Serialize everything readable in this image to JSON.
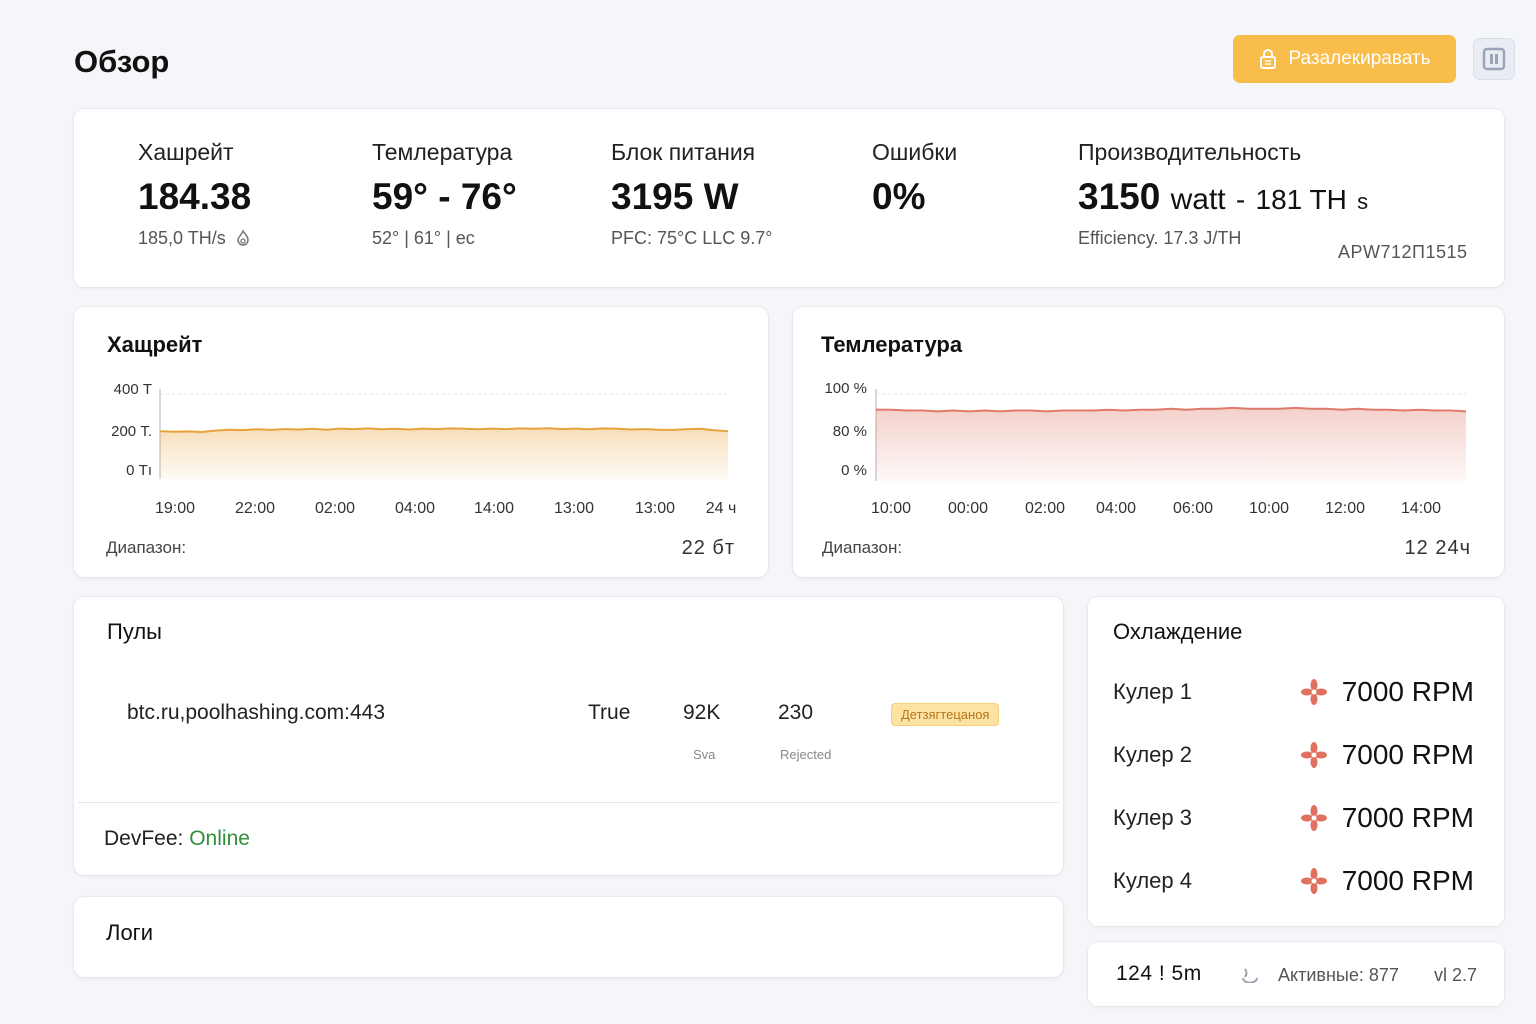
{
  "page": {
    "title": "Обзор"
  },
  "toolbar": {
    "unlock_label": "Разалекиравать",
    "lock_icon": "lock-icon",
    "pause_icon": "pause-icon"
  },
  "stats": {
    "hashrate": {
      "label": "Хашрейт",
      "value": "184.38",
      "sub": "185,0 TH/s"
    },
    "temperature": {
      "label": "Темлература",
      "value": "59° - 76°",
      "sub": "52° | 61° | ec"
    },
    "psu": {
      "label": "Блок питания",
      "value": "3195 W",
      "sub": "PFC: 75°C  LLC 9.7°"
    },
    "errors": {
      "label": "Ошибки",
      "value": "0%"
    },
    "performance": {
      "label": "Производительность",
      "value_main": "3150",
      "value_unit": "watt",
      "value_sep": "-",
      "value_th": "181 TH",
      "value_s": "s",
      "sub": "Efficiency. 17.3 J/TH",
      "model": "APW712П1515"
    }
  },
  "hashrate_chart": {
    "title": "Хащрейт",
    "range_label": "Диапазон:",
    "range_value": "22 бт",
    "color": "#e8a23a"
  },
  "temperature_chart": {
    "title": "Темлература",
    "range_label": "Диапазон:",
    "range_value": "12 24ч",
    "color": "#e07a6a"
  },
  "chart_data": [
    {
      "type": "area",
      "title": "Хащрейт",
      "y_ticks": [
        "400 Т",
        "200 Т.",
        "0 Тı"
      ],
      "ylim": [
        0,
        400
      ],
      "x_ticks": [
        "19:00",
        "22:00",
        "02:00",
        "04:00",
        "14:00",
        "13:00",
        "13:00",
        "24 ч"
      ],
      "series": [
        {
          "values": [
            225,
            222,
            224,
            221,
            228,
            232,
            230,
            234,
            231,
            235,
            233,
            236,
            232,
            237,
            235,
            238,
            234,
            236,
            233,
            237,
            235,
            238,
            236,
            234,
            237,
            235,
            238,
            236,
            239,
            235,
            237,
            234,
            238,
            236,
            233,
            235,
            232,
            231,
            234,
            236,
            229,
            225
          ]
        }
      ]
    },
    {
      "type": "area",
      "title": "Темлература",
      "y_ticks": [
        "100 %",
        "80 %",
        "0 %"
      ],
      "x_ticks": [
        "10:00",
        "00:00",
        "02:00",
        "04:00",
        "06:00",
        "10:00",
        "12:00",
        "14:00"
      ],
      "series": [
        {
          "values": [
            82,
            82,
            81,
            81,
            80,
            81,
            80,
            81,
            80,
            81,
            81,
            80,
            81,
            81,
            81,
            82,
            81,
            82,
            82,
            83,
            82,
            83,
            83,
            84,
            83,
            83,
            83,
            84,
            83,
            83,
            82,
            83,
            82,
            82,
            81,
            82,
            81,
            81,
            80
          ]
        }
      ]
    }
  ],
  "pools": {
    "title": "Пулы",
    "rows": [
      {
        "url": "btc.ru,poolhashing.com:443",
        "active": "True",
        "accepted": "92K",
        "accepted_label": "Sva",
        "rejected": "230",
        "rejected_label": "Rejected",
        "status": "Детзягтецаноя"
      }
    ],
    "devfee_label": "DevFee:",
    "devfee_value": "Online",
    "devfee_color": "#2f8f3a"
  },
  "logs": {
    "title": "Логи"
  },
  "cooling": {
    "title": "Охлаждение",
    "fans": [
      {
        "name": "Кулер 1",
        "rpm": "7000 RPM"
      },
      {
        "name": "Кулер 2",
        "rpm": "7000 RPM"
      },
      {
        "name": "Кулер 3",
        "rpm": "7000 RPM"
      },
      {
        "name": "Кулер 4",
        "rpm": "7000 RPM"
      }
    ],
    "fan_color": "#e07060"
  },
  "footer": {
    "uptime": "124 ! 5m",
    "active_label": "Активные:",
    "active_value": "877",
    "version": "vl 2.7"
  }
}
